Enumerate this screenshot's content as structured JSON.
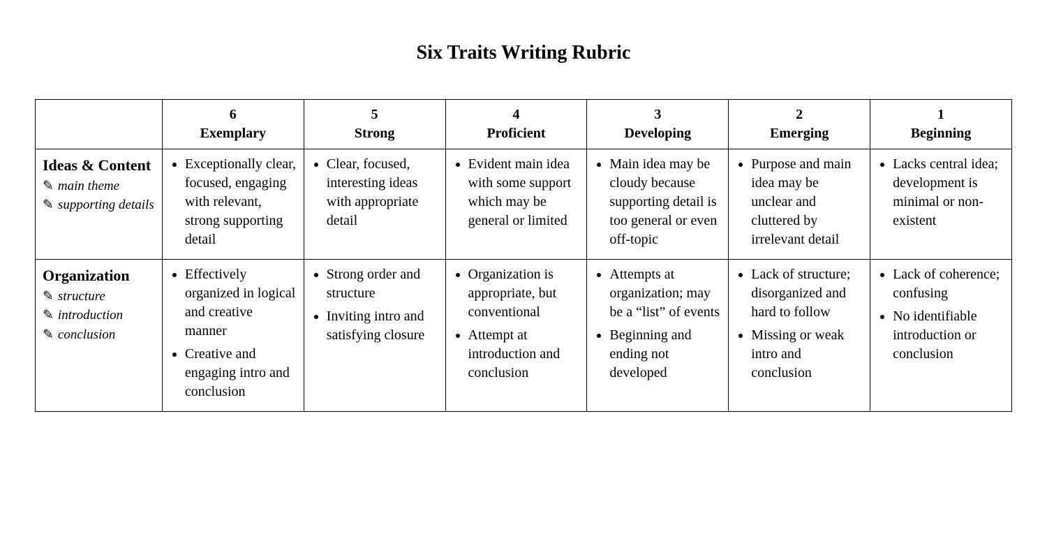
{
  "title": "Six Traits Writing Rubric",
  "colors": {
    "background": "#ffffff",
    "text": "#000000",
    "border": "#000000"
  },
  "typography": {
    "title_fontsize": 28,
    "header_fontsize": 22,
    "body_fontsize": 20,
    "font_family": "Garamond / Times-style serif"
  },
  "levels": [
    {
      "score": "6",
      "label": "Exemplary"
    },
    {
      "score": "5",
      "label": "Strong"
    },
    {
      "score": "4",
      "label": "Proficient"
    },
    {
      "score": "3",
      "label": "Developing"
    },
    {
      "score": "2",
      "label": "Emerging"
    },
    {
      "score": "1",
      "label": "Beginning"
    }
  ],
  "traits": [
    {
      "name": "Ideas & Content",
      "subs": [
        "main theme",
        "supporting details"
      ],
      "cells": [
        [
          "Exceptionally clear, focused, engaging with relevant, strong supporting detail"
        ],
        [
          "Clear, focused, interesting ideas with appropriate detail"
        ],
        [
          "Evident main idea with some support which may be general or limited"
        ],
        [
          "Main idea may be cloudy because supporting detail is too general or even off-topic"
        ],
        [
          "Purpose and main idea may be unclear and cluttered by irrelevant detail"
        ],
        [
          "Lacks central idea; development is minimal or non-existent"
        ]
      ]
    },
    {
      "name": "Organization",
      "subs": [
        "structure",
        "introduction",
        "conclusion"
      ],
      "cells": [
        [
          "Effectively organized in logical and creative manner",
          "Creative and engaging intro and conclusion"
        ],
        [
          "Strong order and structure",
          "Inviting intro and satisfying closure"
        ],
        [
          "Organization is appropriate, but conventional",
          "Attempt at introduction and conclusion"
        ],
        [
          "Attempts at organization; may be a “list” of events",
          "Beginning and ending not developed"
        ],
        [
          "Lack of structure; disorganized and hard to follow",
          "Missing or weak intro and conclusion"
        ],
        [
          "Lack of coherence; confusing",
          "No identifiable introduction or conclusion"
        ]
      ]
    }
  ]
}
